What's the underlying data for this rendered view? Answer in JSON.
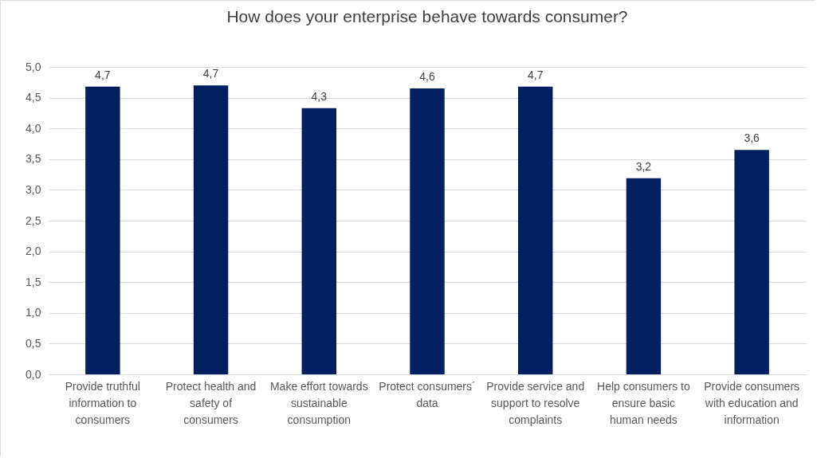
{
  "chart_data": {
    "type": "bar",
    "title": "How does your enterprise behave towards consumer?",
    "categories": [
      "Provide truthful information to consumers",
      "Protect health and safety of consumers",
      "Make effort towards sustainable consumption",
      "Protect consumers´ data",
      "Provide service and support to resolve complaints",
      "Help consumers to ensure basic human needs",
      "Provide consumers with education and information"
    ],
    "values": [
      4.68,
      4.7,
      4.33,
      4.65,
      4.68,
      3.19,
      3.65
    ],
    "value_labels": [
      "4,7",
      "4,7",
      "4,3",
      "4,6",
      "4,7",
      "3,2",
      "3,6"
    ],
    "color": "#002060",
    "ylim": [
      0,
      5
    ],
    "yticks": [
      {
        "value": 0,
        "label": "0,0"
      },
      {
        "value": 0.5,
        "label": "0,5"
      },
      {
        "value": 1,
        "label": "1,0"
      },
      {
        "value": 1.5,
        "label": "1,5"
      },
      {
        "value": 2,
        "label": "2,0"
      },
      {
        "value": 2.5,
        "label": "2,5"
      },
      {
        "value": 3,
        "label": "3,0"
      },
      {
        "value": 3.5,
        "label": "3,5"
      },
      {
        "value": 4,
        "label": "4,0"
      },
      {
        "value": 4.5,
        "label": "4,5"
      },
      {
        "value": 5,
        "label": "5,0"
      }
    ],
    "grid": true
  }
}
